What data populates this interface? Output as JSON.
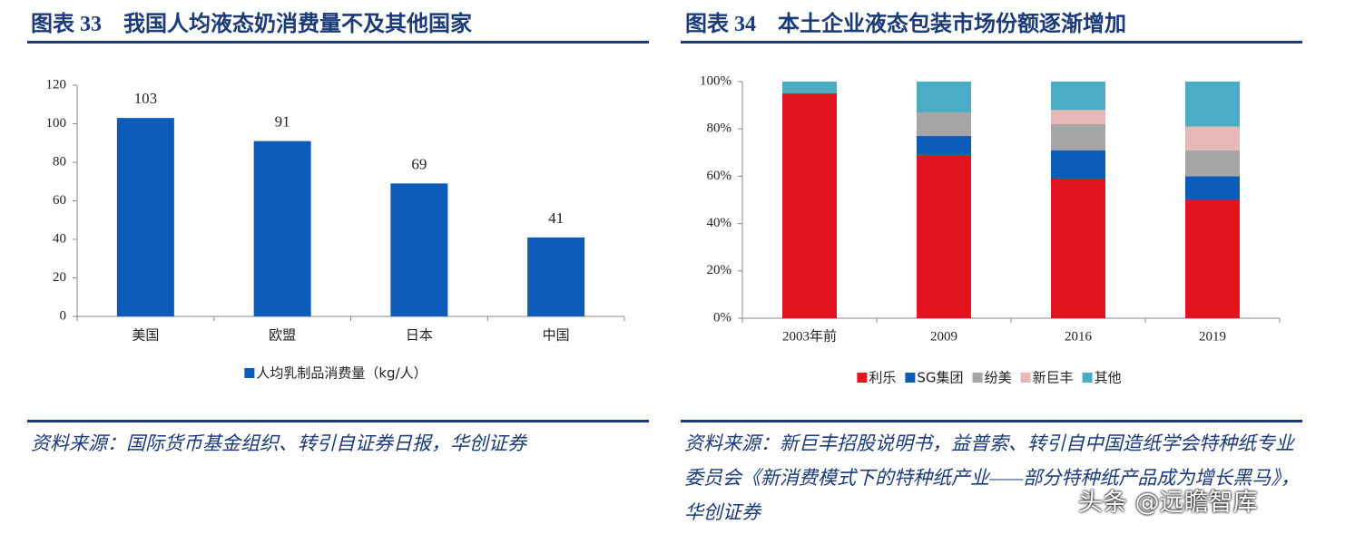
{
  "chart_data": [
    {
      "type": "bar",
      "title": "图表 33　我国人均液态奶消费量不及其他国家",
      "categories": [
        "美国",
        "欧盟",
        "日本",
        "中国"
      ],
      "series": [
        {
          "name": "人均乳制品消费量（kg/人）",
          "color": "#0b5cb8",
          "values": [
            103,
            91,
            69,
            41
          ]
        }
      ],
      "ylim": [
        0,
        120
      ],
      "yticks": [
        0,
        20,
        40,
        60,
        80,
        100,
        120
      ],
      "data_labels": true,
      "legend": "bottom",
      "source": "资料来源：国际货币基金组织、转引自证券日报，华创证券"
    },
    {
      "type": "stacked_bar",
      "title": "图表 34　本土企业液态包装市场份额逐渐增加",
      "categories": [
        "2003年前",
        "2009",
        "2016",
        "2019"
      ],
      "series": [
        {
          "name": "利乐",
          "color": "#e3141f",
          "values": [
            95,
            69,
            59,
            50
          ]
        },
        {
          "name": "SG集团",
          "color": "#0b5cb8",
          "values": [
            0,
            8,
            12,
            10
          ]
        },
        {
          "name": "纷美",
          "color": "#a6a6a6",
          "values": [
            0,
            10,
            11,
            11
          ]
        },
        {
          "name": "新巨丰",
          "color": "#e6b8b7",
          "values": [
            0,
            0,
            6,
            10
          ]
        },
        {
          "name": "其他",
          "color": "#4bacc6",
          "values": [
            5,
            13,
            12,
            19
          ]
        }
      ],
      "ylim": [
        0,
        100
      ],
      "yticks": [
        {
          "value": 0,
          "label": "0%"
        },
        {
          "value": 20,
          "label": "20%"
        },
        {
          "value": 40,
          "label": "40%"
        },
        {
          "value": 60,
          "label": "60%"
        },
        {
          "value": 80,
          "label": "80%"
        },
        {
          "value": 100,
          "label": "100%"
        }
      ],
      "data_labels": false,
      "legend": "bottom",
      "source": "资料来源：新巨丰招股说明书，益普索、转引自中国造纸学会特种纸专业委员会《新消费模式下的特种纸产业——部分特种纸产品成为增长黑马》，华创证券"
    }
  ],
  "watermark": "头条 @远瞻智库"
}
